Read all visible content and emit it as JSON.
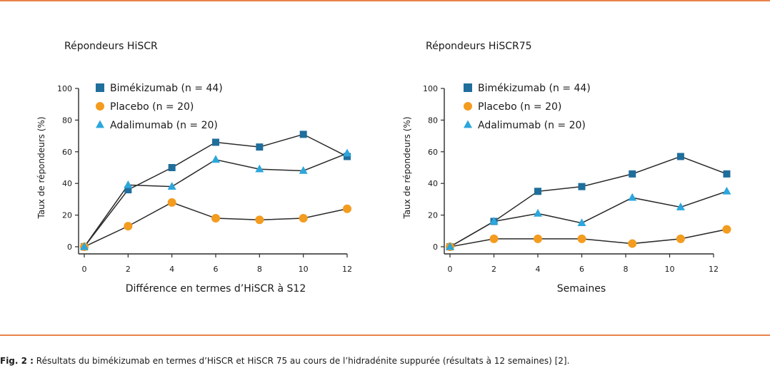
{
  "caption": {
    "label": "Fig. 2 :",
    "text": "Résultats du bimékizumab en termes d’HiSCR et HiSCR 75 au cours de l’hidradénite suppurée (résultats à 12 semaines) [2]."
  },
  "colors": {
    "rule": "#e8834a",
    "bimekizumab": "#1f6e9c",
    "placebo": "#f39c1f",
    "adalimumab": "#2ba7dc",
    "line": "#2a2a2a"
  },
  "chart_data": [
    {
      "type": "line",
      "title": "Répondeurs HiSCR",
      "xlabel": "Différence en termes d’HiSCR à S12",
      "ylabel": "Taux de répondeurs (%)",
      "xlim": [
        0,
        12
      ],
      "ylim": [
        0,
        100
      ],
      "x_ticks": [
        "0",
        "2",
        "4",
        "6",
        "8",
        "10",
        "12"
      ],
      "y_ticks": [
        "0",
        "20",
        "40",
        "60",
        "80",
        "100"
      ],
      "grid": false,
      "legend_position": "top-left",
      "series": [
        {
          "name": "Bimékizumab (n = 44)",
          "marker": "square",
          "color": "#1f6e9c",
          "points": [
            [
              0,
              0
            ],
            [
              2,
              36
            ],
            [
              4,
              50
            ],
            [
              6,
              66
            ],
            [
              8,
              63
            ],
            [
              10,
              71
            ],
            [
              12,
              57
            ]
          ]
        },
        {
          "name": "Placebo (n = 20)",
          "marker": "circle",
          "color": "#f39c1f",
          "points": [
            [
              0,
              0
            ],
            [
              2,
              13
            ],
            [
              4,
              28
            ],
            [
              6,
              18
            ],
            [
              8,
              17
            ],
            [
              10,
              18
            ],
            [
              12,
              24
            ]
          ]
        },
        {
          "name": "Adalimumab (n = 20)",
          "marker": "triangle",
          "color": "#2ba7dc",
          "points": [
            [
              0,
              0
            ],
            [
              2,
              39
            ],
            [
              4,
              38
            ],
            [
              6,
              55
            ],
            [
              8,
              49
            ],
            [
              10,
              48
            ],
            [
              12,
              59
            ]
          ]
        }
      ]
    },
    {
      "type": "line",
      "title": "Répondeurs HiSCR75",
      "xlabel": "Semaines",
      "ylabel": "Taux de répondeurs (%)",
      "xlim": [
        0,
        12
      ],
      "ylim": [
        0,
        100
      ],
      "x_ticks": [
        "0",
        "2",
        "4",
        "6",
        "8",
        "10",
        "12"
      ],
      "y_ticks": [
        "0",
        "20",
        "40",
        "60",
        "80",
        "100"
      ],
      "grid": false,
      "legend_position": "top-left",
      "series": [
        {
          "name": "Bimékizumab (n = 44)",
          "marker": "square",
          "color": "#1f6e9c",
          "points": [
            [
              0,
              0
            ],
            [
              2,
              16
            ],
            [
              4,
              35
            ],
            [
              6,
              38
            ],
            [
              8.3,
              46
            ],
            [
              10.5,
              57
            ],
            [
              12.6,
              46
            ]
          ]
        },
        {
          "name": "Placebo (n = 20)",
          "marker": "circle",
          "color": "#f39c1f",
          "points": [
            [
              0,
              0
            ],
            [
              2,
              5
            ],
            [
              4,
              5
            ],
            [
              6,
              5
            ],
            [
              8.3,
              2
            ],
            [
              10.5,
              5
            ],
            [
              12.6,
              11
            ]
          ]
        },
        {
          "name": "Adalimumab (n = 20)",
          "marker": "triangle",
          "color": "#2ba7dc",
          "points": [
            [
              0,
              0
            ],
            [
              2,
              16
            ],
            [
              4,
              21
            ],
            [
              6,
              15
            ],
            [
              8.3,
              31
            ],
            [
              10.5,
              25
            ],
            [
              12.6,
              35
            ]
          ]
        }
      ]
    }
  ]
}
